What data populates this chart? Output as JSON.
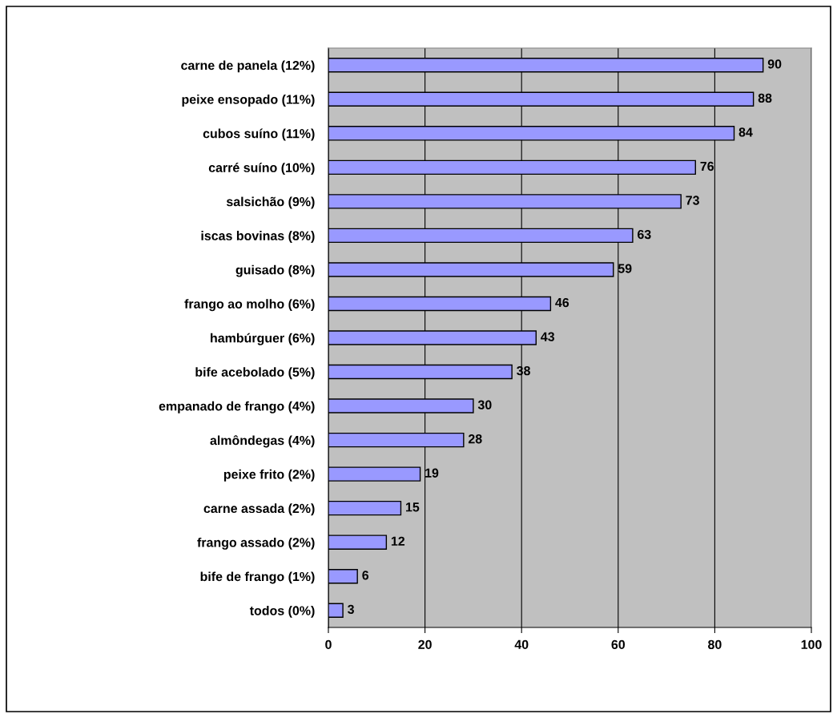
{
  "chart_data": {
    "type": "bar",
    "orientation": "horizontal",
    "categories": [
      "carne de panela (12%)",
      "peixe ensopado (11%)",
      "cubos suíno (11%)",
      "carré suíno (10%)",
      "salsichão (9%)",
      "iscas bovinas (8%)",
      "guisado (8%)",
      "frango ao molho (6%)",
      "hambúrguer (6%)",
      "bife acebolado (5%)",
      "empanado de frango (4%)",
      "almôndegas (4%)",
      "peixe frito (2%)",
      "carne assada (2%)",
      "frango assado (2%)",
      "bife de frango (1%)",
      "todos (0%)"
    ],
    "values": [
      90,
      88,
      84,
      76,
      73,
      63,
      59,
      46,
      43,
      38,
      30,
      28,
      19,
      15,
      12,
      6,
      3
    ],
    "color": "#9999ff",
    "xlim": [
      0,
      100
    ],
    "xticks": [
      0,
      20,
      40,
      60,
      80,
      100
    ],
    "grid": "x",
    "data_labels": true,
    "legend": false
  }
}
